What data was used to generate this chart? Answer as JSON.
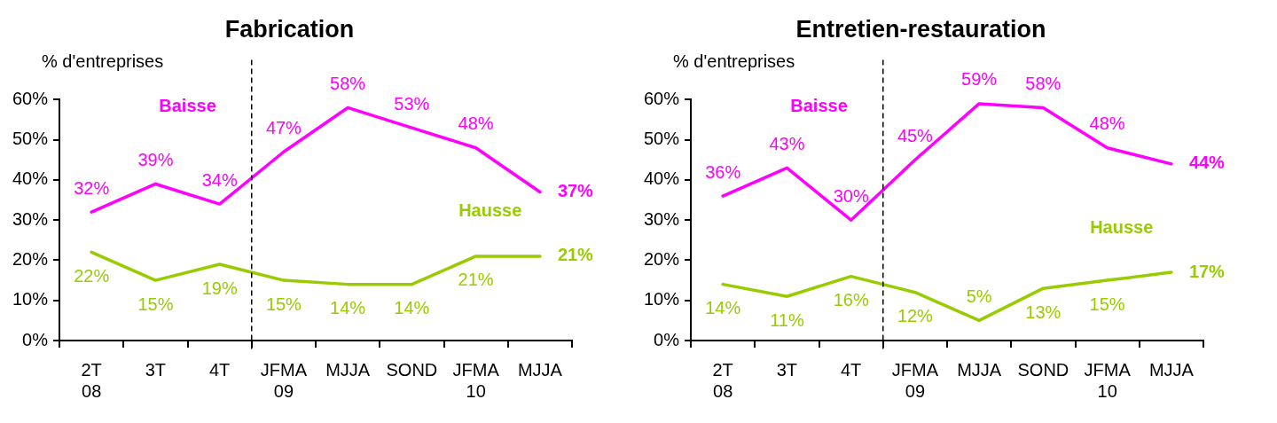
{
  "chart_data": [
    {
      "type": "line",
      "title": "Fabrication",
      "ylabel": "% d'entreprises",
      "categories": [
        "2T\n08",
        "3T",
        "4T",
        "JFMA\n09",
        "MJJA",
        "SOND",
        "JFMA\n10",
        "MJJA"
      ],
      "series": [
        {
          "name": "Baisse",
          "color": "#ff00ff",
          "values": [
            32,
            39,
            34,
            47,
            58,
            53,
            48,
            37
          ],
          "value_labels": [
            "32%",
            "39%",
            "34%",
            "47%",
            "58%",
            "53%",
            "48%",
            "37%"
          ]
        },
        {
          "name": "Hausse",
          "color": "#99cc00",
          "values": [
            22,
            15,
            19,
            15,
            14,
            14,
            21,
            21
          ],
          "value_labels": [
            "22%",
            "15%",
            "19%",
            "15%",
            "14%",
            "14%",
            "21%",
            "21%"
          ]
        }
      ],
      "ylim": [
        0,
        60
      ],
      "yticks": [
        {
          "value": 0,
          "label": "0%"
        },
        {
          "value": 10,
          "label": "10%"
        },
        {
          "value": 20,
          "label": "20%"
        },
        {
          "value": 30,
          "label": "30%"
        },
        {
          "value": 40,
          "label": "40%"
        },
        {
          "value": 50,
          "label": "50%"
        },
        {
          "value": 60,
          "label": "60%"
        }
      ],
      "grid": false,
      "legend": false,
      "marker": "none",
      "line_style": "solid"
    },
    {
      "type": "line",
      "title": "Entretien-restauration",
      "ylabel": "% d'entreprises",
      "categories": [
        "2T\n08",
        "3T",
        "4T",
        "JFMA\n09",
        "MJJA",
        "SOND",
        "JFMA\n10",
        "MJJA"
      ],
      "series": [
        {
          "name": "Baisse",
          "color": "#ff00ff",
          "values": [
            36,
            43,
            30,
            45,
            59,
            58,
            48,
            44
          ],
          "value_labels": [
            "36%",
            "43%",
            "30%",
            "45%",
            "59%",
            "58%",
            "48%",
            "44%"
          ]
        },
        {
          "name": "Hausse",
          "color": "#99cc00",
          "values": [
            14,
            11,
            16,
            12,
            5,
            13,
            15,
            17
          ],
          "value_labels": [
            "14%",
            "11%",
            "16%",
            "12%",
            "5%",
            "13%",
            "15%",
            "17%"
          ]
        }
      ],
      "ylim": [
        0,
        60
      ],
      "yticks": [
        {
          "value": 0,
          "label": "0%"
        },
        {
          "value": 10,
          "label": "10%"
        },
        {
          "value": 20,
          "label": "20%"
        },
        {
          "value": 30,
          "label": "30%"
        },
        {
          "value": 40,
          "label": "40%"
        },
        {
          "value": 50,
          "label": "50%"
        },
        {
          "value": 60,
          "label": "60%"
        }
      ],
      "grid": false,
      "legend": false,
      "marker": "none",
      "line_style": "solid"
    }
  ]
}
